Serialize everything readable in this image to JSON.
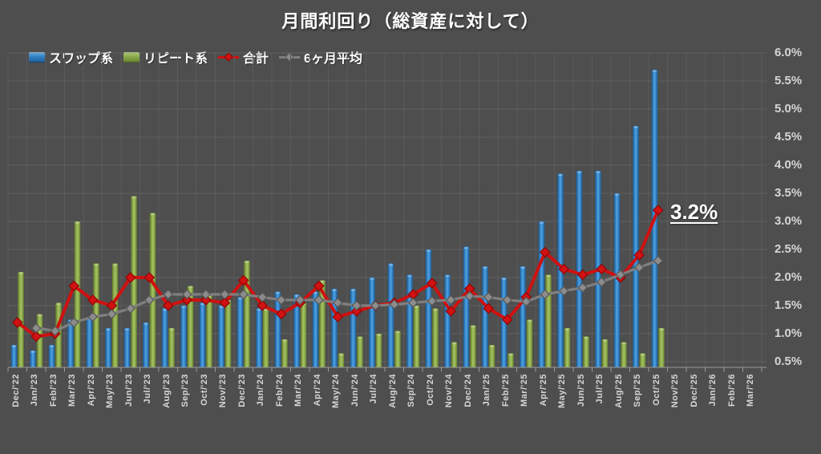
{
  "title": "月間利回り（総資産に対して）",
  "annotation": {
    "text": "3.2%"
  },
  "legend": [
    {
      "label": "スワップ系",
      "marker": "bar-swatch",
      "color": "#2f7fc1"
    },
    {
      "label": "リピート系",
      "marker": "bar-swatch",
      "color": "#8aa94a"
    },
    {
      "label": "合計",
      "marker": "line-diamond",
      "color": "#cf1111"
    },
    {
      "label": "6ヶ月平均",
      "marker": "line-diamond",
      "color": "#7f7f7f"
    }
  ],
  "colors": {
    "background": "#4e4e4e",
    "grid_h": "#6f6f6f",
    "grid_v": "#5a5a5a",
    "axis": "#9a9a9a",
    "text": "#d6d6d6",
    "bar_blue": "#2f7fc1",
    "bar_green": "#8aa94a",
    "line_red": "#cf1111",
    "line_gray": "#7f7f7f"
  },
  "chart_data": {
    "type": "combo-bar-line",
    "title": "月間利回り（総資産に対して）",
    "legend_position": "top-left",
    "y_axis": {
      "side": "right",
      "baseline": 0.4,
      "max": 6.0,
      "tick_step": 0.5,
      "tick_labels": [
        "6.0%",
        "5.5%",
        "5.0%",
        "4.5%",
        "4.0%",
        "3.5%",
        "3.0%",
        "2.5%",
        "2.0%",
        "1.5%",
        "1.0%",
        "0.5%"
      ]
    },
    "categories": [
      "Dec/'22",
      "Jan/'23",
      "Feb/'23",
      "Mar/'23",
      "Apr/'23",
      "May/'23",
      "Jun/'23",
      "Jul/'23",
      "Aug/'23",
      "Sep/'23",
      "Oct/'23",
      "Nov/'23",
      "Dec/'23",
      "Jan/'24",
      "Feb/'24",
      "Mar/'24",
      "Apr/'24",
      "May/'24",
      "Jun/'24",
      "Jul/'24",
      "Aug/'24",
      "Sep/'24",
      "Oct/'24",
      "Nov/'24",
      "Dec/'24",
      "Jan/'25",
      "Feb/'25",
      "Mar/'25",
      "Apr/'25",
      "May/'25",
      "Jun/'25",
      "Jul/'25",
      "Aug/'25",
      "Sep/'25",
      "Oct/'25",
      "Nov/'25",
      "Dec/'25",
      "Jan/'26",
      "Feb/'26",
      "Mar/'26"
    ],
    "series": [
      {
        "name": "スワップ系",
        "type": "bar",
        "color": "#2f7fc1",
        "values": [
          0.8,
          0.7,
          0.8,
          1.25,
          1.3,
          1.1,
          1.1,
          1.2,
          1.45,
          1.5,
          1.55,
          1.5,
          1.65,
          1.45,
          1.75,
          1.7,
          1.75,
          1.8,
          1.8,
          2.0,
          2.25,
          2.05,
          2.5,
          2.05,
          2.55,
          2.2,
          2.0,
          2.2,
          3.0,
          3.85,
          3.9,
          3.9,
          3.5,
          4.7,
          5.7,
          null,
          null,
          null,
          null,
          null
        ]
      },
      {
        "name": "リピート系",
        "type": "bar",
        "color": "#8aa94a",
        "values": [
          2.1,
          1.35,
          1.55,
          3.0,
          2.25,
          2.25,
          3.45,
          3.15,
          1.1,
          1.85,
          1.7,
          1.6,
          2.3,
          1.45,
          0.9,
          1.55,
          1.95,
          0.65,
          0.95,
          1.0,
          1.05,
          1.5,
          1.45,
          0.85,
          1.15,
          0.8,
          0.65,
          1.25,
          2.05,
          1.1,
          0.95,
          0.9,
          0.85,
          0.65,
          1.1,
          null,
          null,
          null,
          null,
          null
        ]
      },
      {
        "name": "合計",
        "type": "line",
        "color": "#cf1111",
        "values": [
          1.2,
          0.95,
          1.0,
          1.85,
          1.6,
          1.5,
          2.0,
          2.0,
          1.5,
          1.6,
          1.6,
          1.55,
          1.95,
          1.5,
          1.35,
          1.55,
          1.85,
          1.3,
          1.4,
          1.5,
          1.55,
          1.7,
          1.9,
          1.4,
          1.8,
          1.45,
          1.25,
          1.65,
          2.45,
          2.15,
          2.05,
          2.15,
          2.0,
          2.4,
          3.2,
          null,
          null,
          null,
          null,
          null
        ]
      },
      {
        "name": "6ヶ月平均",
        "type": "line",
        "color": "#7f7f7f",
        "values": [
          null,
          1.1,
          1.05,
          1.2,
          1.3,
          1.35,
          1.45,
          1.6,
          1.7,
          1.7,
          1.7,
          1.7,
          1.7,
          1.65,
          1.6,
          1.6,
          1.6,
          1.55,
          1.5,
          1.5,
          1.52,
          1.55,
          1.58,
          1.6,
          1.67,
          1.65,
          1.6,
          1.57,
          1.7,
          1.76,
          1.82,
          1.92,
          2.05,
          2.18,
          2.3,
          null,
          null,
          null,
          null,
          null
        ]
      }
    ],
    "annotation": {
      "text": "3.2%",
      "attached_to": "合計 Oct/'25"
    }
  }
}
